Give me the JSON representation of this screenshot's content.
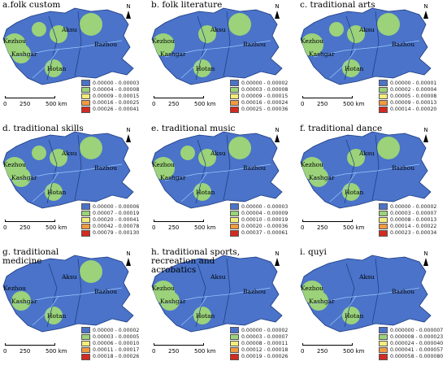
{
  "cities": {
    "kezhou": "Kezhou",
    "kashgar": "Kashgar",
    "aksu": "Aksu",
    "hotan": "Hotan",
    "bazhou": "Bazhou"
  },
  "north": "N",
  "scale": {
    "t0": "0",
    "t1": "250",
    "t2": "500 km"
  },
  "colors": {
    "c1": "#4a73c9",
    "c2": "#9bd27a",
    "c3": "#f3ee7a",
    "c4": "#f29a3e",
    "c5": "#d42a1f"
  },
  "panels": [
    {
      "title": "a.folk  custom",
      "legend": [
        "0.00000 - 0.00003",
        "0.00004 - 0.00008",
        "0.00009 - 0.00015",
        "0.00016 - 0.00025",
        "0.00026 - 0.00041"
      ],
      "hotspots": [
        {
          "id": "kz",
          "level": 5
        },
        {
          "id": "ks",
          "level": 5
        },
        {
          "id": "ne",
          "level": 5
        },
        {
          "id": "ak",
          "level": 3
        },
        {
          "id": "ht",
          "level": 3
        },
        {
          "id": "w2",
          "level": 2
        }
      ]
    },
    {
      "title": "b. folk literature",
      "legend": [
        "0.00000 - 0.00002",
        "0.00003 - 0.00008",
        "0.00009 - 0.00015",
        "0.00016 - 0.00024",
        "0.00025 - 0.00036"
      ],
      "hotspots": [
        {
          "id": "kz",
          "level": 5
        },
        {
          "id": "ne",
          "level": 5
        },
        {
          "id": "ak",
          "level": 2
        },
        {
          "id": "ht",
          "level": 2
        }
      ]
    },
    {
      "title": "c. traditional arts",
      "legend": [
        "0.00000 - 0.00001",
        "0.00002 - 0.00004",
        "0.00005 - 0.00008",
        "0.00009 - 0.00013",
        "0.00014 - 0.00020"
      ],
      "hotspots": [
        {
          "id": "kz",
          "level": 5
        },
        {
          "id": "ne",
          "level": 4
        },
        {
          "id": "ak",
          "level": 3
        },
        {
          "id": "ht",
          "level": 4
        },
        {
          "id": "w2",
          "level": 3
        }
      ]
    },
    {
      "title": "d. traditional skills",
      "legend": [
        "0.00000 - 0.00006",
        "0.00007 - 0.00019",
        "0.00020 - 0.00041",
        "0.00042 - 0.00078",
        "0.00079 - 0.00130"
      ],
      "hotspots": [
        {
          "id": "kz",
          "level": 5
        },
        {
          "id": "ks",
          "level": 4
        },
        {
          "id": "ne",
          "level": 3
        },
        {
          "id": "ak",
          "level": 3
        },
        {
          "id": "ht",
          "level": 3
        },
        {
          "id": "w2",
          "level": 2
        }
      ]
    },
    {
      "title": "e. traditional music",
      "legend": [
        "0.00000 - 0.00003",
        "0.00004 - 0.00009",
        "0.00010 - 0.00019",
        "0.00020 - 0.00036",
        "0.00037 - 0.00061"
      ],
      "hotspots": [
        {
          "id": "kz",
          "level": 5
        },
        {
          "id": "ne",
          "level": 4
        },
        {
          "id": "ak",
          "level": 3
        },
        {
          "id": "ht",
          "level": 3
        },
        {
          "id": "w2",
          "level": 2
        }
      ]
    },
    {
      "title": "f. traditional dance",
      "legend": [
        "0.00000 - 0.00002",
        "0.00003 - 0.00007",
        "0.00008 - 0.00013",
        "0.00014 - 0.00022",
        "0.00023 - 0.00034"
      ],
      "hotspots": [
        {
          "id": "kz",
          "level": 5
        },
        {
          "id": "ks",
          "level": 5
        },
        {
          "id": "ne",
          "level": 4
        },
        {
          "id": "ak",
          "level": 3
        },
        {
          "id": "ht",
          "level": 3
        }
      ]
    },
    {
      "title": "g. traditional medicine",
      "legend": [
        "0.00000 - 0.00002",
        "0.00003 - 0.00005",
        "0.00006 - 0.00010",
        "0.00011 - 0.00017",
        "0.00018 - 0.00026"
      ],
      "hotspots": [
        {
          "id": "ne",
          "level": 5
        },
        {
          "id": "ht",
          "level": 5
        },
        {
          "id": "ks",
          "level": 3
        }
      ]
    },
    {
      "title": "h. traditional sports,\nrecreation and\nacrobatics",
      "legend": [
        "0.00000 - 0.00002",
        "0.00003 - 0.00007",
        "0.00008 - 0.00011",
        "0.00012 - 0.00018",
        "0.00019 - 0.00026"
      ],
      "hotspots": [
        {
          "id": "kz",
          "level": 5
        },
        {
          "id": "ks",
          "level": 4
        },
        {
          "id": "ht",
          "level": 2
        }
      ]
    },
    {
      "title": "i. quyi",
      "legend": [
        "0.000000 - 0.000007",
        "0.000008 - 0.000023",
        "0.000024 - 0.000040",
        "0.000041 - 0.000057",
        "0.000058 - 0.000080"
      ],
      "hotspots": [
        {
          "id": "kz",
          "level": 4
        },
        {
          "id": "ht",
          "level": 5
        },
        {
          "id": "ks",
          "level": 2
        }
      ]
    }
  ]
}
